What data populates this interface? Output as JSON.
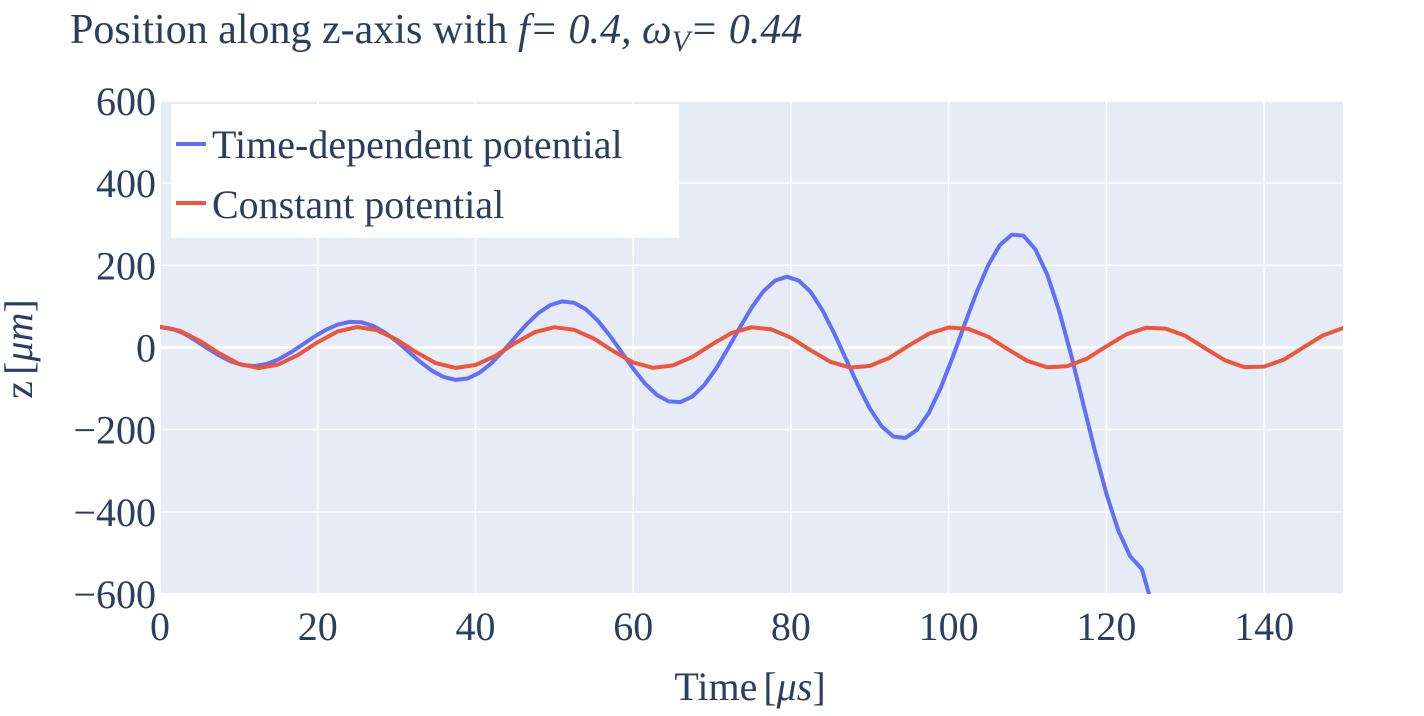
{
  "chart_data": {
    "type": "line",
    "title": {
      "prefix": "Position along z-axis with ",
      "f_symbol": "f",
      "f_value": "= 0.4, ",
      "omega_symbol": "ω",
      "omega_sub": "V",
      "omega_value": "= 0.44"
    },
    "xlabel": {
      "text": "Time",
      "unit": "μs"
    },
    "ylabel": {
      "text": "z",
      "unit": "μm"
    },
    "xlim": [
      0,
      150
    ],
    "ylim": [
      -600,
      600
    ],
    "xticks": [
      0,
      20,
      40,
      60,
      80,
      100,
      120,
      140
    ],
    "yticks": [
      600,
      400,
      200,
      0,
      -200,
      -400,
      -600
    ],
    "grid": true,
    "legend_position": "top-left",
    "plot_background": "#e5ecf6",
    "series": [
      {
        "name": "Time-dependent potential",
        "color": "#636efa",
        "x": [
          0,
          1.5,
          3,
          4.5,
          6,
          7.5,
          9,
          10.5,
          12,
          13.5,
          15,
          16.5,
          18,
          19.5,
          21,
          22.5,
          24,
          25.5,
          27,
          28.5,
          30,
          31.5,
          33,
          34.5,
          36,
          37.5,
          39,
          40.5,
          42,
          43.5,
          45,
          46.5,
          48,
          49.5,
          51,
          52.5,
          54,
          55.5,
          57,
          58.5,
          60,
          61.5,
          63,
          64.5,
          66,
          67.5,
          69,
          70.5,
          72,
          73.5,
          75,
          76.5,
          78,
          79.5,
          81,
          82.5,
          84,
          85.5,
          87,
          88.5,
          90,
          91.5,
          93,
          94.5,
          96,
          97.5,
          99,
          100.5,
          102,
          103.5,
          105,
          106.5,
          108,
          109.5,
          111,
          112.5,
          114,
          115.5,
          117,
          118.5,
          120,
          121.5,
          123,
          124.5,
          125.4
        ],
        "y": [
          50,
          45.8,
          34.2,
          17.3,
          -1.8,
          -19.8,
          -34.1,
          -42.9,
          -45,
          -40.3,
          -29.1,
          -12.9,
          6.1,
          25.5,
          42.7,
          55.6,
          62.3,
          61.5,
          52.8,
          36.8,
          15,
          -10,
          -35,
          -56.8,
          -72.1,
          -78.8,
          -75.5,
          -61.7,
          -38.7,
          -8.9,
          24.2,
          56.6,
          84.2,
          103.5,
          112.2,
          108.7,
          92.9,
          65.8,
          30,
          -10.6,
          -51.4,
          -87.8,
          -115.5,
          -131.2,
          -132.8,
          -119.3,
          -91.5,
          -51.6,
          -3.3,
          47.9,
          96.5,
          136.6,
          163.1,
          172.4,
          162.9,
          134.9,
          90.6,
          34.1,
          -28.8,
          -91.8,
          -148.2,
          -191.6,
          -216.8,
          -220.3,
          -200.4,
          -158.4,
          -97.7,
          -24.1,
          55.1,
          132.5,
          199.9,
          249.4,
          274.8,
          272,
          239.1,
          177,
          89.9,
          -15.9,
          -132,
          -248.6,
          -356.1,
          -445,
          -507.9,
          -539.3,
          -600
        ]
      },
      {
        "name": "Constant potential",
        "color": "#ef553b",
        "x": [
          0,
          2.5,
          5,
          7.5,
          10,
          12.5,
          15,
          17.5,
          20,
          22.5,
          25,
          27.5,
          30,
          32.5,
          35,
          37.5,
          40,
          42.5,
          45,
          47.5,
          50,
          52.5,
          55,
          57.5,
          60,
          62.5,
          65,
          67.5,
          70,
          72.5,
          75,
          77.5,
          80,
          82.5,
          85,
          87.5,
          90,
          92.5,
          95,
          97.5,
          100,
          102.5,
          105,
          107.5,
          110,
          112.5,
          115,
          117.5,
          120,
          122.5,
          125,
          127.5,
          130,
          132.5,
          135,
          137.5,
          140,
          142.5,
          145,
          147.5,
          150
        ],
        "y": [
          50,
          40.9,
          16.8,
          -14,
          -39.9,
          -49.9,
          -41.5,
          -18,
          12.8,
          39,
          49.8,
          42,
          19.2,
          -11.6,
          -38.2,
          -49.6,
          -42.6,
          -20.4,
          10.4,
          37.3,
          49.5,
          43.1,
          21.6,
          -9.1,
          -36.4,
          -49.3,
          -43.7,
          -22.8,
          7.9,
          35.6,
          49.1,
          44.2,
          23.9,
          -6.7,
          -34.7,
          -48.9,
          -44.7,
          -25.1,
          5.4,
          33.8,
          48.6,
          45.2,
          26.3,
          -4.2,
          -32.8,
          -48.3,
          -45.6,
          -27.4,
          2.9,
          31.9,
          48,
          46.1,
          28.5,
          -1.7,
          -30.9,
          -47.7,
          -46.5,
          -29.6,
          0.4,
          29.9,
          47.3
        ]
      }
    ]
  }
}
